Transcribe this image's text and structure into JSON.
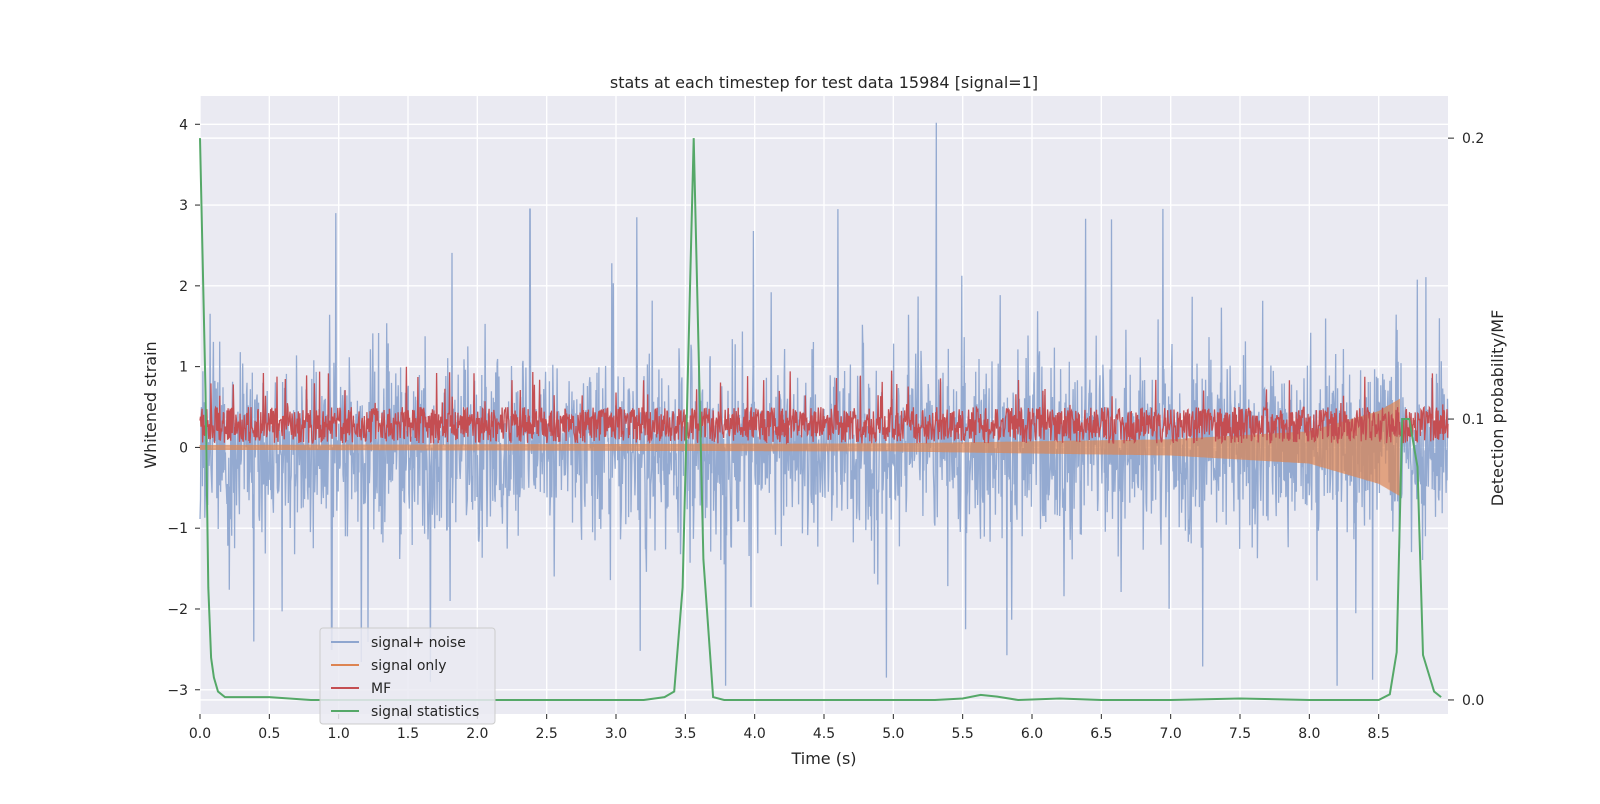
{
  "chart_data": {
    "type": "line",
    "title": "stats at each timestep for test data 15984 [signal=1]",
    "xlabel": "Time (s)",
    "ylabel": "Whitened strain",
    "y2label": "Detection probability/MF",
    "xlim": [
      0.0,
      9.0
    ],
    "ylim": [
      -3.3,
      4.35
    ],
    "y2lim": [
      -0.005,
      0.215
    ],
    "xticks": [
      "0.0",
      "0.5",
      "1.0",
      "1.5",
      "2.0",
      "2.5",
      "3.0",
      "3.5",
      "4.0",
      "4.5",
      "5.0",
      "5.5",
      "6.0",
      "6.5",
      "7.0",
      "7.5",
      "8.0",
      "8.5"
    ],
    "yticks": [
      "4",
      "3",
      "2",
      "1",
      "0",
      "−1",
      "−2",
      "−3"
    ],
    "y2ticks": [
      "0.2",
      "0.1",
      "0.0"
    ],
    "grid": true,
    "legend_position": "lower-left",
    "colors": {
      "background": "#eaeaf2",
      "grid": "#ffffff",
      "signal_noise": "#8fa6cf",
      "signal_only": "#dd8452",
      "mf": "#c44e52",
      "signal_statistics": "#55a868"
    },
    "series": [
      {
        "name": "signal+ noise",
        "axis": "left",
        "description_stats": {
          "min": -2.95,
          "max": 4.02,
          "typical_low": -1.6,
          "typical_high": 1.6
        },
        "notable_peaks": [
          {
            "x": 0.98,
            "y": 2.9
          },
          {
            "x": 2.38,
            "y": 2.95
          },
          {
            "x": 3.15,
            "y": 2.85
          },
          {
            "x": 4.6,
            "y": 2.95
          },
          {
            "x": 5.31,
            "y": 4.02
          },
          {
            "x": 8.2,
            "y": 2.75
          },
          {
            "x": 0.95,
            "y": -2.5
          },
          {
            "x": 4.95,
            "y": -2.85
          },
          {
            "x": 8.2,
            "y": -2.95
          }
        ]
      },
      {
        "name": "signal only",
        "axis": "left",
        "envelope": [
          {
            "x": 0.0,
            "amp": 0.03
          },
          {
            "x": 5.0,
            "amp": 0.05
          },
          {
            "x": 7.0,
            "amp": 0.1
          },
          {
            "x": 8.0,
            "amp": 0.2
          },
          {
            "x": 8.5,
            "amp": 0.45
          },
          {
            "x": 8.65,
            "amp": 0.6
          }
        ],
        "end_x": 8.65
      },
      {
        "name": "MF",
        "axis": "left",
        "baseline": 0.25,
        "band": [
          0.05,
          0.5
        ],
        "max_spike": 1.0
      },
      {
        "name": "signal statistics",
        "axis": "right",
        "x": [
          0.0,
          0.04,
          0.06,
          0.08,
          0.1,
          0.13,
          0.18,
          0.3,
          0.5,
          0.8,
          1.0,
          1.5,
          2.0,
          2.5,
          3.0,
          3.2,
          3.35,
          3.42,
          3.48,
          3.56,
          3.63,
          3.7,
          3.78,
          4.0,
          4.5,
          5.0,
          5.3,
          5.5,
          5.63,
          5.75,
          5.9,
          6.2,
          6.5,
          6.8,
          7.0,
          7.5,
          8.0,
          8.5,
          8.58,
          8.63,
          8.67,
          8.72,
          8.78,
          8.82,
          8.9,
          8.95
        ],
        "values": [
          0.2,
          0.11,
          0.04,
          0.015,
          0.008,
          0.003,
          0.001,
          0.001,
          0.001,
          0.0,
          0.0,
          0.0,
          0.0,
          0.0,
          0.0,
          0.0,
          0.001,
          0.003,
          0.04,
          0.2,
          0.05,
          0.001,
          0.0,
          0.0,
          0.0,
          0.0,
          0.0,
          0.0005,
          0.0018,
          0.0012,
          0.0,
          0.0005,
          0.0,
          0.0,
          0.0,
          0.0005,
          0.0,
          0.0,
          0.002,
          0.017,
          0.1,
          0.1,
          0.083,
          0.016,
          0.003,
          0.001
        ]
      }
    ]
  }
}
